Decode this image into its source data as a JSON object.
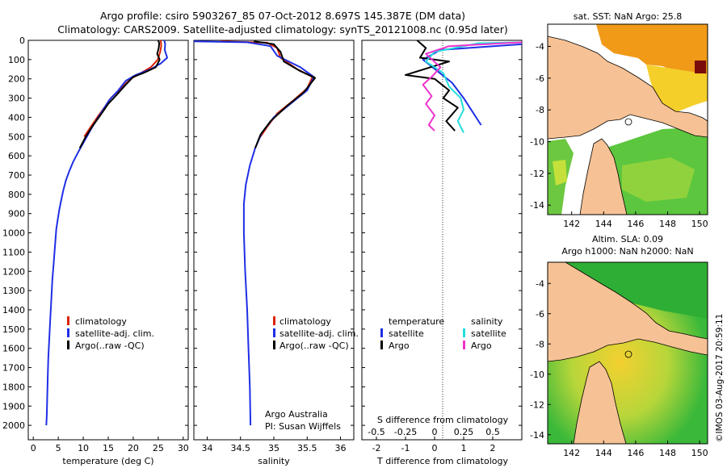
{
  "header": {
    "title_line1": "Argo profile: csiro 5903267_85 07-Oct-2012 8.697S 145.387E (DM data)",
    "title_line2": "Climatology: CARS2009. Satellite-adjusted climatology: synTS_20121008.nc (0.95d later)"
  },
  "colors": {
    "climatology": "#dd2200",
    "satellite": "#1f2fe6",
    "argo": "#000000",
    "satellite_s": "#22dddd",
    "argo_s": "#ee33cc",
    "land": "#f6c295"
  },
  "chart_data": [
    {
      "type": "line",
      "xlabel": "temperature (deg C)",
      "xlim": [
        -1,
        31
      ],
      "xticks": [
        0,
        5,
        10,
        15,
        20,
        25,
        30
      ],
      "ylim": [
        2075,
        0
      ],
      "yticks": [
        0,
        100,
        200,
        300,
        400,
        500,
        600,
        700,
        800,
        900,
        1000,
        1100,
        1200,
        1300,
        1400,
        1500,
        1600,
        1700,
        1800,
        1900,
        2000
      ],
      "legend": [
        "climatology",
        "satellite-adj. clim.",
        "Argo(..raw -QC)"
      ],
      "series": [
        {
          "name": "climatology",
          "color_key": "climatology",
          "points": [
            [
              25.5,
              0
            ],
            [
              25.6,
              30
            ],
            [
              25.4,
              60
            ],
            [
              24.9,
              100
            ],
            [
              23.5,
              140
            ],
            [
              21.5,
              170
            ],
            [
              19.5,
              200
            ],
            [
              17.5,
              250
            ],
            [
              15.5,
              300
            ],
            [
              14.2,
              350
            ],
            [
              12.8,
              400
            ],
            [
              11.5,
              450
            ],
            [
              10.2,
              500
            ]
          ]
        },
        {
          "name": "satellite-adj. clim.",
          "color_key": "satellite",
          "points": [
            [
              26.2,
              0
            ],
            [
              26.4,
              20
            ],
            [
              26.3,
              50
            ],
            [
              26.8,
              90
            ],
            [
              25.5,
              120
            ],
            [
              23.5,
              150
            ],
            [
              20.5,
              180
            ],
            [
              18.5,
              210
            ],
            [
              17.0,
              260
            ],
            [
              15.2,
              310
            ],
            [
              13.5,
              380
            ],
            [
              11.8,
              450
            ],
            [
              10.3,
              520
            ],
            [
              9.0,
              580
            ],
            [
              8.0,
              630
            ],
            [
              7.2,
              680
            ],
            [
              6.5,
              730
            ],
            [
              6.0,
              780
            ],
            [
              5.6,
              830
            ],
            [
              5.2,
              880
            ],
            [
              4.9,
              930
            ],
            [
              4.6,
              980
            ],
            [
              4.4,
              1050
            ],
            [
              4.1,
              1150
            ],
            [
              3.8,
              1250
            ],
            [
              3.6,
              1350
            ],
            [
              3.4,
              1450
            ],
            [
              3.2,
              1550
            ],
            [
              3.0,
              1650
            ],
            [
              2.9,
              1750
            ],
            [
              2.8,
              1850
            ],
            [
              2.7,
              1950
            ],
            [
              2.6,
              2000
            ]
          ]
        },
        {
          "name": "Argo(..raw -QC)",
          "color_key": "argo",
          "points": [
            [
              25.0,
              0
            ],
            [
              25.2,
              15
            ],
            [
              25.1,
              40
            ],
            [
              24.8,
              70
            ],
            [
              25.3,
              100
            ],
            [
              24.5,
              140
            ],
            [
              22.0,
              170
            ],
            [
              20.0,
              190
            ],
            [
              18.5,
              230
            ],
            [
              16.8,
              280
            ],
            [
              15.0,
              330
            ],
            [
              13.4,
              390
            ],
            [
              12.0,
              440
            ],
            [
              10.5,
              500
            ],
            [
              9.3,
              560
            ]
          ]
        }
      ]
    },
    {
      "type": "line",
      "xlabel": "salinity",
      "xlim": [
        33.8,
        36.2
      ],
      "xticks": [
        34,
        34.5,
        35,
        35.5,
        36
      ],
      "tick_labels": [
        "34",
        "34.5",
        "35",
        "35.5",
        "36"
      ],
      "ylim": [
        2075,
        0
      ],
      "legend": [
        "climatology",
        "satellite-adj. clim.",
        "Argo(..raw -QC)"
      ],
      "annotation": [
        "Argo Australia",
        "PI: Susan Wijffels"
      ],
      "series": [
        {
          "name": "climatology",
          "color_key": "climatology",
          "points": [
            [
              34.2,
              5
            ],
            [
              34.9,
              12
            ],
            [
              35.05,
              40
            ],
            [
              35.1,
              90
            ],
            [
              35.35,
              150
            ],
            [
              35.58,
              190
            ],
            [
              35.5,
              250
            ],
            [
              35.3,
              310
            ],
            [
              35.05,
              380
            ],
            [
              34.9,
              450
            ],
            [
              34.8,
              500
            ]
          ]
        },
        {
          "name": "satellite-adj. clim.",
          "color_key": "satellite",
          "points": [
            [
              33.8,
              5
            ],
            [
              34.6,
              10
            ],
            [
              34.95,
              30
            ],
            [
              35.05,
              80
            ],
            [
              35.4,
              140
            ],
            [
              35.6,
              190
            ],
            [
              35.5,
              260
            ],
            [
              35.25,
              330
            ],
            [
              35.0,
              400
            ],
            [
              34.82,
              480
            ],
            [
              34.72,
              560
            ],
            [
              34.64,
              650
            ],
            [
              34.58,
              750
            ],
            [
              34.55,
              850
            ],
            [
              34.55,
              1000
            ],
            [
              34.57,
              1200
            ],
            [
              34.6,
              1400
            ],
            [
              34.62,
              1600
            ],
            [
              34.64,
              1800
            ],
            [
              34.65,
              2000
            ]
          ]
        },
        {
          "name": "Argo(..raw -QC)",
          "color_key": "argo",
          "points": [
            [
              34.7,
              5
            ],
            [
              35.0,
              20
            ],
            [
              35.1,
              60
            ],
            [
              35.15,
              110
            ],
            [
              35.4,
              160
            ],
            [
              35.62,
              195
            ],
            [
              35.45,
              270
            ],
            [
              35.2,
              340
            ],
            [
              34.95,
              420
            ],
            [
              34.8,
              490
            ],
            [
              34.72,
              560
            ]
          ]
        }
      ]
    },
    {
      "type": "line",
      "xlabel_top": "S difference from climatology",
      "xlabel": "T difference from climatology",
      "xlim": [
        -2.5,
        3
      ],
      "xticks": [
        -2,
        -1,
        0,
        1,
        2
      ],
      "s_ticks": [
        "-0.5",
        "-0.25",
        "0",
        "0.25",
        "0.5"
      ],
      "ylim": [
        2075,
        0
      ],
      "legend_headers": [
        "temperature",
        "salinity"
      ],
      "legend": [
        "satellite",
        "Argo",
        "satellite",
        "Argo"
      ],
      "series": [
        {
          "name": "satellite",
          "color_key": "satellite",
          "points": [
            [
              3.0,
              20
            ],
            [
              0.2,
              50
            ],
            [
              -0.4,
              100
            ],
            [
              0.1,
              160
            ],
            [
              0.6,
              220
            ],
            [
              1.0,
              300
            ],
            [
              1.3,
              370
            ],
            [
              1.6,
              440
            ]
          ]
        },
        {
          "name": "Argo",
          "color_key": "argo",
          "points": [
            [
              -0.6,
              0
            ],
            [
              -0.3,
              40
            ],
            [
              -0.5,
              90
            ],
            [
              0.5,
              110
            ],
            [
              -1.0,
              180
            ],
            [
              0.0,
              200
            ],
            [
              0.5,
              260
            ],
            [
              0.3,
              300
            ],
            [
              0.8,
              350
            ],
            [
              0.4,
              420
            ],
            [
              0.7,
              470
            ]
          ]
        },
        {
          "name": "satellite",
          "color_key": "satellite_s",
          "points": [
            [
              3.0,
              10
            ],
            [
              1.5,
              15
            ],
            [
              0.0,
              60
            ],
            [
              -0.3,
              110
            ],
            [
              0.3,
              170
            ],
            [
              0.5,
              240
            ],
            [
              0.9,
              300
            ],
            [
              1.0,
              360
            ],
            [
              0.8,
              420
            ],
            [
              1.0,
              480
            ]
          ]
        },
        {
          "name": "Argo",
          "color_key": "argo_s",
          "points": [
            [
              3.0,
              10
            ],
            [
              0.5,
              30
            ],
            [
              -0.3,
              70
            ],
            [
              0.2,
              140
            ],
            [
              -0.1,
              190
            ],
            [
              -0.4,
              230
            ],
            [
              -0.1,
              290
            ],
            [
              -0.3,
              330
            ],
            [
              0.0,
              390
            ],
            [
              -0.2,
              440
            ],
            [
              0.0,
              470
            ]
          ]
        }
      ]
    },
    {
      "type": "heatmap",
      "title": "sat. SST: NaN Argo: 25.8",
      "xlim": [
        140.5,
        150.5
      ],
      "ylim": [
        -14.6,
        -2.6
      ],
      "xticks": [
        142,
        144,
        146,
        148,
        150
      ],
      "yticks": [
        -4,
        -6,
        -8,
        -10,
        -12,
        -14
      ]
    },
    {
      "type": "heatmap",
      "title_line1": "Altim. SLA: 0.09",
      "title_line2": "Argo h1000: NaN h2000: NaN",
      "xlim": [
        140.5,
        150.5
      ],
      "ylim": [
        -14.6,
        -2.6
      ],
      "xticks": [
        142,
        144,
        146,
        148,
        150
      ],
      "yticks": [
        -4,
        -6,
        -8,
        -10,
        -12,
        -14
      ]
    }
  ],
  "footer": {
    "credit": "©IMOS 03-Aug-2017 20:59:11"
  }
}
